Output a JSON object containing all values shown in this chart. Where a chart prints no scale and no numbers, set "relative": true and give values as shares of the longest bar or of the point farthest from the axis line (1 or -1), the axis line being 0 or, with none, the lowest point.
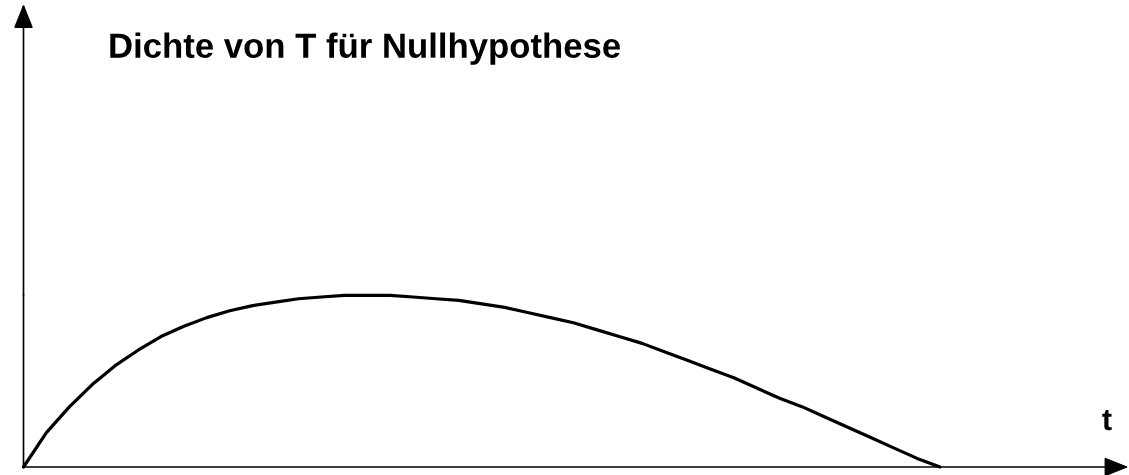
{
  "chart_data": {
    "type": "line",
    "title": "Dichte von T für Nullhypothese",
    "annotations": [
      "t"
    ],
    "categories": [
      null,
      null,
      null,
      null,
      null,
      null,
      null,
      null,
      null,
      null,
      null,
      null,
      null,
      null,
      null,
      null,
      null,
      null,
      null,
      null,
      null,
      null,
      null,
      null,
      null,
      null,
      null,
      null,
      null,
      null,
      null,
      null,
      null,
      null,
      null,
      null,
      null,
      null,
      null,
      null,
      null
    ],
    "series": [
      {
        "color": "#000000",
        "values": [
          0,
          0.2,
          0.35,
          0.48,
          0.59,
          0.68,
          0.76,
          0.82,
          0.87,
          0.91,
          0.94,
          0.96,
          0.98,
          0.99,
          1,
          1,
          1,
          0.99,
          0.98,
          0.97,
          0.95,
          0.93,
          0.9,
          0.87,
          0.84,
          0.8,
          0.76,
          0.72,
          0.67,
          0.62,
          0.57,
          0.52,
          0.46,
          0.4,
          0.35,
          0.29,
          0.23,
          0.17,
          0.11,
          0.05,
          0
        ]
      }
    ],
    "relative": true,
    "line_style": "solid"
  }
}
